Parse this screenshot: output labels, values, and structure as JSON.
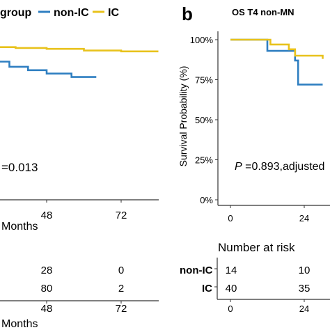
{
  "colors": {
    "non_ic": "#2f7fc1",
    "ic": "#e8c21c",
    "axis": "#333333",
    "text": "#222222"
  },
  "left": {
    "legend": {
      "title": "group",
      "items": [
        "non-IC",
        "IC"
      ]
    },
    "pvalue_text": "=0.013",
    "risk_values": {
      "non_ic": [
        "28",
        "0"
      ],
      "ic": [
        "80",
        "2"
      ]
    }
  },
  "right": {
    "panel_letter": "b",
    "title": "OS T4 non-MN",
    "ylabel": "Survival Probability (%)",
    "yticks": [
      "0%",
      "25%",
      "50%",
      "75%",
      "100%"
    ],
    "pvalue_prefix": "P",
    "pvalue_rest": " =0.893,adjusted",
    "risk_title": "Number at risk",
    "risk_rows": [
      {
        "label": "non-IC",
        "values": [
          "14",
          "10"
        ]
      },
      {
        "label": "IC",
        "values": [
          "40",
          "35"
        ]
      }
    ]
  },
  "chart_data": [
    {
      "type": "line",
      "step": true,
      "xlabel": "Months",
      "xticks": [
        48,
        72
      ],
      "series": [
        {
          "name": "non-IC",
          "x": [
            0,
            12,
            14,
            16,
            20,
            22,
            30,
            36,
            42,
            48,
            56,
            64
          ],
          "y": [
            0.92,
            0.9,
            0.88,
            0.86,
            0.84,
            0.82,
            0.81,
            0.78,
            0.76,
            0.74,
            0.72,
            0.72
          ]
        },
        {
          "name": "IC",
          "x": [
            0,
            8,
            14,
            22,
            30,
            38,
            48,
            60,
            72,
            84
          ],
          "y": [
            0.93,
            0.92,
            0.91,
            0.9,
            0.895,
            0.89,
            0.885,
            0.875,
            0.87,
            0.87
          ]
        }
      ]
    },
    {
      "type": "line",
      "step": true,
      "title": "OS T4 non-MN",
      "xlabel": "",
      "ylabel": "Survival Probability (%)",
      "xticks": [
        0,
        24
      ],
      "ylim": [
        0,
        1.0
      ],
      "series": [
        {
          "name": "non-IC",
          "x": [
            0,
            11,
            12,
            17,
            21,
            22,
            24,
            30
          ],
          "y": [
            1.0,
            1.0,
            0.93,
            0.93,
            0.87,
            0.72,
            0.72,
            0.72
          ]
        },
        {
          "name": "IC",
          "x": [
            0,
            11,
            13,
            17,
            19,
            21,
            24,
            30
          ],
          "y": [
            1.0,
            1.0,
            0.97,
            0.97,
            0.94,
            0.9,
            0.9,
            0.88
          ]
        }
      ]
    }
  ]
}
